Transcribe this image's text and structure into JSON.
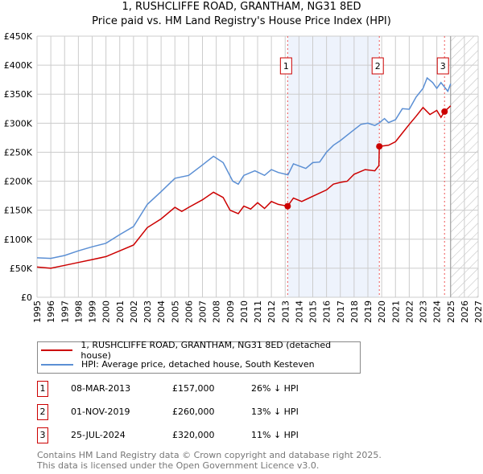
{
  "title": "1, RUSHCLIFFE ROAD, GRANTHAM, NG31 8ED",
  "subtitle": "Price paid vs. HM Land Registry's House Price Index (HPI)",
  "legend": {
    "red": "1, RUSHCLIFFE ROAD, GRANTHAM, NG31 8ED (detached house)",
    "blue": "HPI: Average price, detached house, South Kesteven"
  },
  "sales": [
    {
      "num": "1",
      "date": "08-MAR-2013",
      "price": "£157,000",
      "hpi": "26% ↓ HPI"
    },
    {
      "num": "2",
      "date": "01-NOV-2019",
      "price": "£260,000",
      "hpi": "13% ↓ HPI"
    },
    {
      "num": "3",
      "date": "25-JUL-2024",
      "price": "£320,000",
      "hpi": "11% ↓ HPI"
    }
  ],
  "footer": {
    "line1": "Contains HM Land Registry data © Crown copyright and database right 2025.",
    "line2": "This data is licensed under the Open Government Licence v3.0."
  },
  "colors": {
    "red": "#cc0000",
    "blue": "#5b8fd4",
    "shade": "#eef3fc"
  },
  "chart_data": {
    "type": "line",
    "xlim": [
      1995,
      2027
    ],
    "ylim": [
      0,
      450000
    ],
    "yticks": [
      "£0",
      "£50K",
      "£100K",
      "£150K",
      "£200K",
      "£250K",
      "£300K",
      "£350K",
      "£400K",
      "£450K"
    ],
    "xticks": [
      "1995",
      "1996",
      "1997",
      "1998",
      "1999",
      "2000",
      "2001",
      "2002",
      "2003",
      "2004",
      "2005",
      "2006",
      "2007",
      "2008",
      "2009",
      "2010",
      "2011",
      "2012",
      "2013",
      "2014",
      "2015",
      "2016",
      "2017",
      "2018",
      "2019",
      "2020",
      "2021",
      "2022",
      "2023",
      "2024",
      "2025",
      "2026",
      "2027"
    ],
    "shaded_range": [
      2013.18,
      2019.83
    ],
    "forecast_from": 2025.0,
    "markers": [
      {
        "label": "1",
        "x": 2013.18,
        "y": 157000
      },
      {
        "label": "2",
        "x": 2019.83,
        "y": 260000
      },
      {
        "label": "3",
        "x": 2024.56,
        "y": 320000
      }
    ],
    "series": [
      {
        "name": "HPI: Average price, detached house, South Kesteven",
        "color": "#5b8fd4",
        "x": [
          1995,
          1996,
          1997,
          1998,
          1999,
          2000,
          2001,
          2002,
          2003,
          2004,
          2005,
          2006,
          2007,
          2007.8,
          2008.5,
          2009.2,
          2009.6,
          2010,
          2010.8,
          2011.5,
          2012,
          2012.5,
          2013.2,
          2013.6,
          2014.5,
          2015,
          2015.5,
          2016,
          2016.5,
          2017,
          2017.8,
          2018.5,
          2019,
          2019.5,
          2019.8,
          2020.2,
          2020.5,
          2021,
          2021.5,
          2022,
          2022.5,
          2023,
          2023.3,
          2023.7,
          2024,
          2024.3,
          2024.8,
          2025
        ],
        "y": [
          68000,
          67000,
          72000,
          80000,
          87000,
          93000,
          108000,
          122000,
          160000,
          182000,
          205000,
          210000,
          228000,
          243000,
          232000,
          200000,
          195000,
          210000,
          218000,
          210000,
          220000,
          215000,
          211000,
          230000,
          222000,
          232000,
          233000,
          250000,
          262000,
          270000,
          285000,
          298000,
          300000,
          296000,
          300000,
          308000,
          301000,
          306000,
          325000,
          324000,
          345000,
          360000,
          378000,
          370000,
          360000,
          370000,
          355000,
          368000
        ]
      },
      {
        "name": "1, RUSHCLIFFE ROAD, GRANTHAM, NG31 8ED (detached house)",
        "color": "#cc0000",
        "x": [
          1995,
          1996,
          1997,
          1998,
          1999,
          2000,
          2001,
          2002,
          2003,
          2004,
          2005,
          2005.5,
          2006,
          2007,
          2007.8,
          2008.5,
          2009,
          2009.6,
          2010,
          2010.5,
          2011,
          2011.5,
          2012,
          2012.5,
          2013.18,
          2013.6,
          2014.2,
          2015,
          2016,
          2016.5,
          2017,
          2017.5,
          2018,
          2018.8,
          2019.5,
          2019.8,
          2019.83,
          2020.5,
          2021,
          2021.5,
          2022,
          2022.5,
          2023,
          2023.5,
          2024,
          2024.3,
          2024.56,
          2025
        ],
        "y": [
          52000,
          50000,
          55000,
          60000,
          65000,
          70000,
          80000,
          90000,
          120000,
          135000,
          155000,
          148000,
          155000,
          168000,
          181000,
          172000,
          150000,
          144000,
          157000,
          152000,
          163000,
          153000,
          165000,
          160000,
          157000,
          171000,
          165000,
          174000,
          185000,
          195000,
          198000,
          200000,
          212000,
          220000,
          218000,
          227000,
          260000,
          262000,
          268000,
          283000,
          298000,
          312000,
          327000,
          315000,
          322000,
          310000,
          320000,
          330000
        ]
      }
    ]
  }
}
